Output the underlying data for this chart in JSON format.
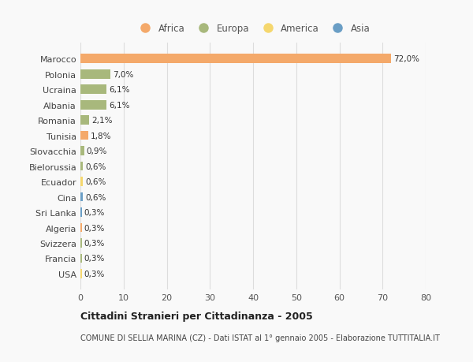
{
  "countries": [
    "Marocco",
    "Polonia",
    "Ucraina",
    "Albania",
    "Romania",
    "Tunisia",
    "Slovacchia",
    "Bielorussia",
    "Ecuador",
    "Cina",
    "Sri Lanka",
    "Algeria",
    "Svizzera",
    "Francia",
    "USA"
  ],
  "values": [
    72.0,
    7.0,
    6.1,
    6.1,
    2.1,
    1.8,
    0.9,
    0.6,
    0.6,
    0.6,
    0.3,
    0.3,
    0.3,
    0.3,
    0.3
  ],
  "labels": [
    "72,0%",
    "7,0%",
    "6,1%",
    "6,1%",
    "2,1%",
    "1,8%",
    "0,9%",
    "0,6%",
    "0,6%",
    "0,6%",
    "0,3%",
    "0,3%",
    "0,3%",
    "0,3%",
    "0,3%"
  ],
  "continents": [
    "Africa",
    "Europa",
    "Europa",
    "Europa",
    "Europa",
    "Africa",
    "Europa",
    "Europa",
    "America",
    "Asia",
    "Asia",
    "Africa",
    "Europa",
    "Europa",
    "America"
  ],
  "colors": {
    "Africa": "#F4A96A",
    "Europa": "#A8B87C",
    "America": "#F5D76E",
    "Asia": "#6A9EC5"
  },
  "legend_order": [
    "Africa",
    "Europa",
    "America",
    "Asia"
  ],
  "title": "Cittadini Stranieri per Cittadinanza - 2005",
  "subtitle": "COMUNE DI SELLIA MARINA (CZ) - Dati ISTAT al 1° gennaio 2005 - Elaborazione TUTTITALIA.IT",
  "xlim": [
    0,
    80
  ],
  "xticks": [
    0,
    10,
    20,
    30,
    40,
    50,
    60,
    70,
    80
  ],
  "background_color": "#f9f9f9",
  "grid_color": "#dddddd"
}
